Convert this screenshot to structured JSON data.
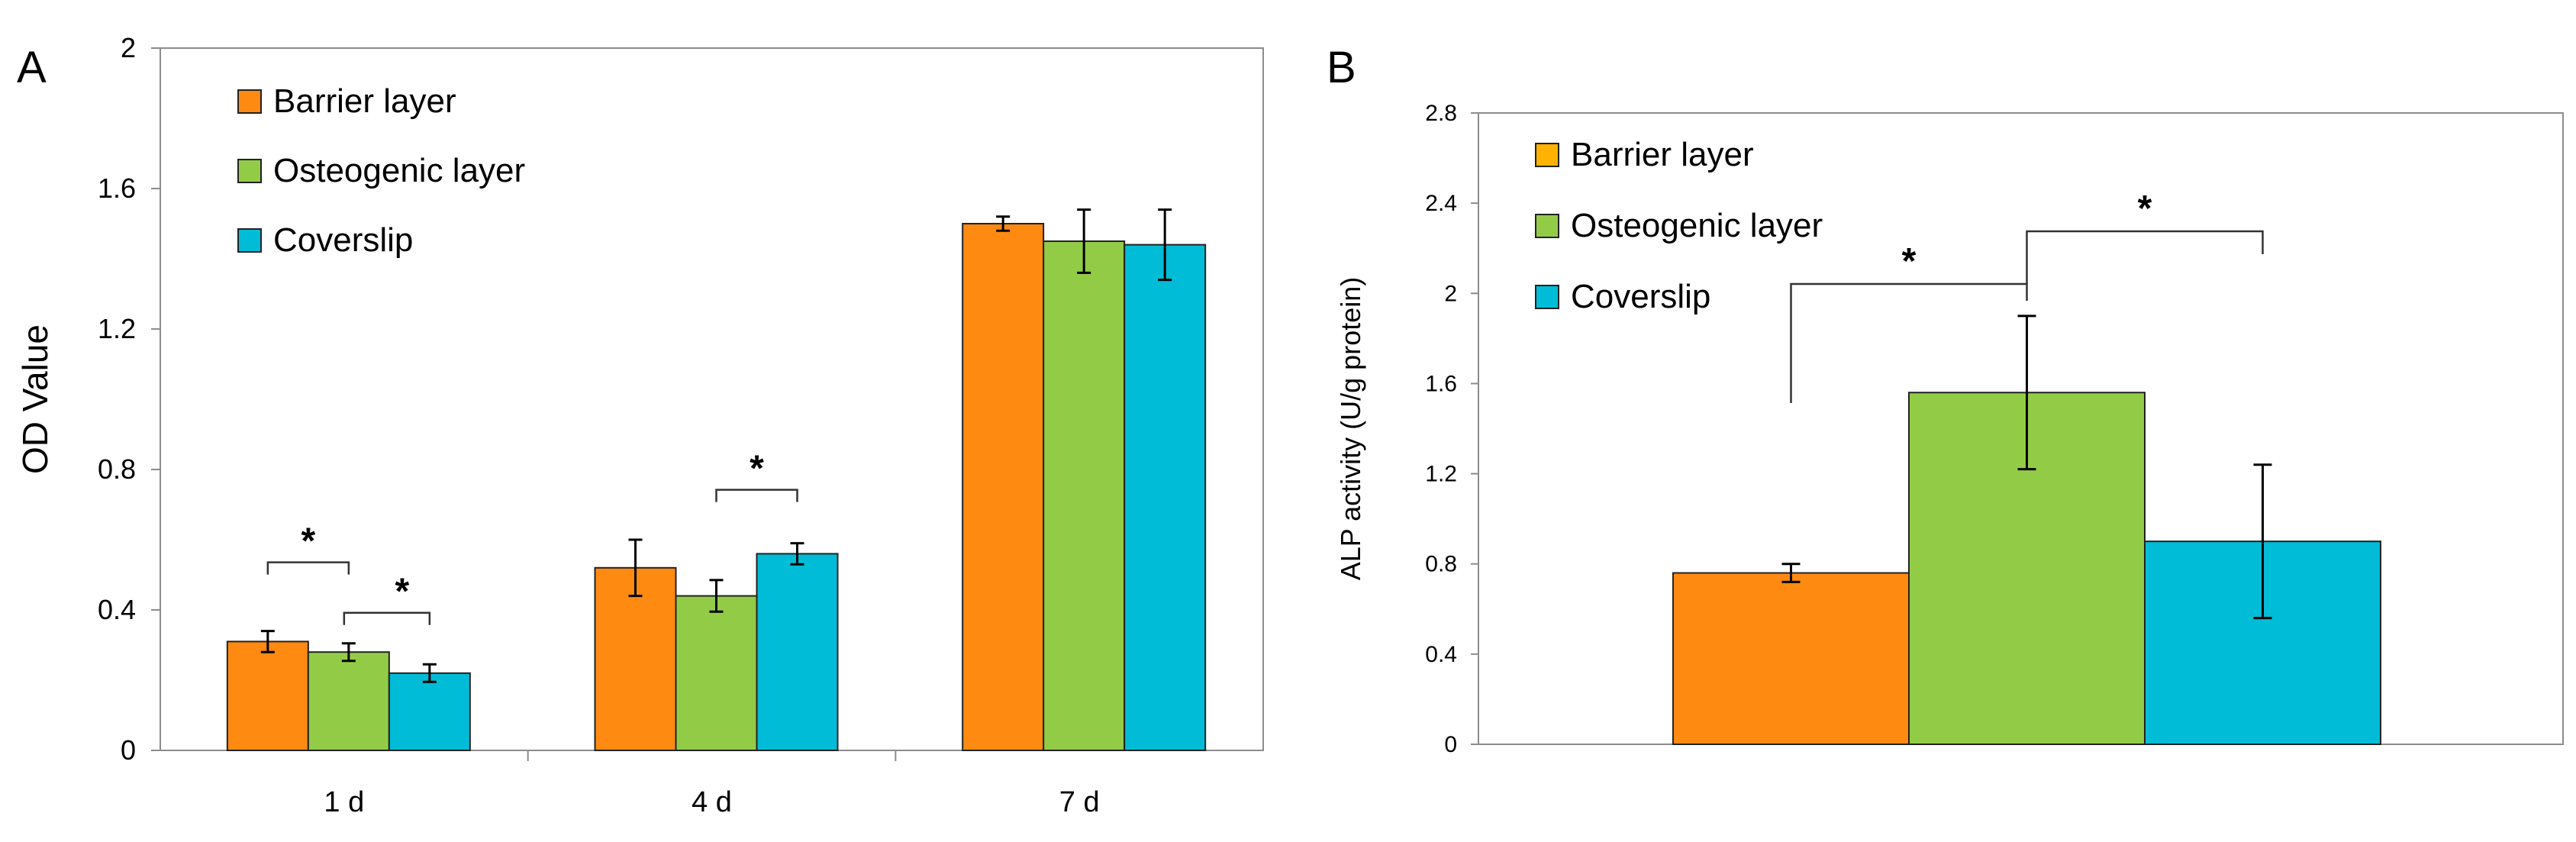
{
  "colors": {
    "barrier": "#FF8A12",
    "osteogenic": "#92CC47",
    "coverslip": "#00BCD6",
    "legend_barrier_b": "#FFB300",
    "axis": "#8c8c8c",
    "error": "#000000"
  },
  "chart_data": [
    {
      "panel": "A",
      "type": "bar",
      "title": "",
      "xlabel": "",
      "ylabel": "OD Value",
      "ylim": [
        0,
        2
      ],
      "yticks": [
        "0",
        "0.4",
        "0.8",
        "1.2",
        "1.6",
        "2"
      ],
      "categories": [
        "1 d",
        "4 d",
        "7 d"
      ],
      "series": [
        {
          "name": "Barrier layer",
          "color_key": "barrier",
          "values": [
            0.31,
            0.52,
            1.5
          ],
          "errors": [
            0.03,
            0.08,
            0.02
          ]
        },
        {
          "name": "Osteogenic layer",
          "color_key": "osteogenic",
          "values": [
            0.28,
            0.44,
            1.45
          ],
          "errors": [
            0.025,
            0.045,
            0.09
          ]
        },
        {
          "name": "Coverslip",
          "color_key": "coverslip",
          "values": [
            0.22,
            0.56,
            1.44
          ],
          "errors": [
            0.025,
            0.03,
            0.1
          ]
        }
      ],
      "legend": [
        "Barrier layer",
        "Osteogenic layer",
        "Coverslip"
      ],
      "significance": [
        {
          "category": 0,
          "from": 0,
          "to": 1,
          "label": "*"
        },
        {
          "category": 0,
          "from": 1,
          "to": 2,
          "label": "*"
        },
        {
          "category": 1,
          "from": 1,
          "to": 2,
          "label": "*"
        }
      ],
      "grid": false
    },
    {
      "panel": "B",
      "type": "bar",
      "title": "",
      "xlabel": "",
      "ylabel": "ALP activity (U/g protein)",
      "ylim": [
        0,
        2.8
      ],
      "yticks": [
        "0",
        "0.4",
        "0.8",
        "1.2",
        "1.6",
        "2",
        "2.4",
        "2.8"
      ],
      "categories": [
        ""
      ],
      "series": [
        {
          "name": "Barrier layer",
          "color_key": "barrier",
          "legend_color_key": "legend_barrier_b",
          "values": [
            0.76
          ],
          "errors": [
            0.04
          ]
        },
        {
          "name": "Osteogenic layer",
          "color_key": "osteogenic",
          "values": [
            1.56
          ],
          "errors": [
            0.34
          ]
        },
        {
          "name": "Coverslip",
          "color_key": "coverslip",
          "values": [
            0.9
          ],
          "errors": [
            0.34
          ]
        }
      ],
      "legend": [
        "Barrier layer",
        "Osteogenic layer",
        "Coverslip"
      ],
      "significance": [
        {
          "from": 0,
          "to": 1,
          "label": "*"
        },
        {
          "from": 1,
          "to": 2,
          "label": "*"
        }
      ],
      "grid": false
    }
  ]
}
